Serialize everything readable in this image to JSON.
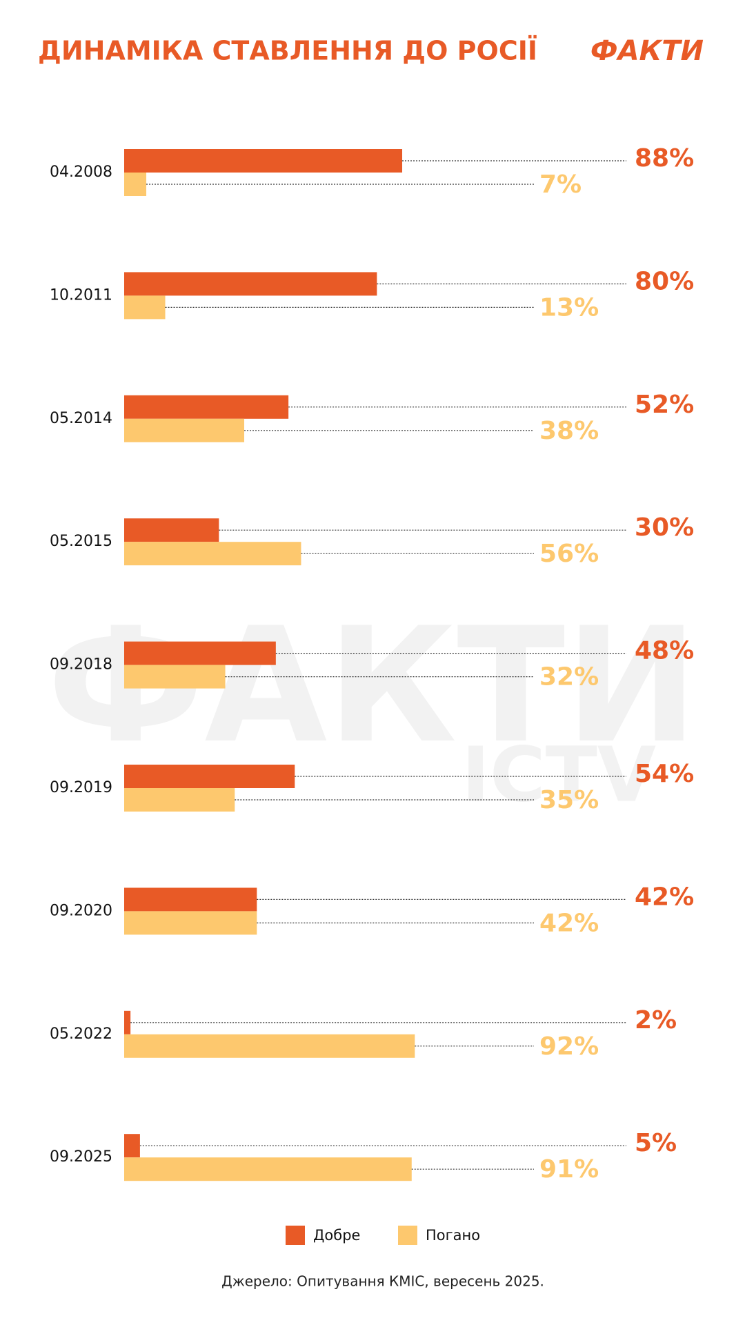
{
  "chart_data": {
    "type": "bar",
    "orientation": "horizontal",
    "title": "ДИНАМІКА СТАВЛЕННЯ ДО РОСІЇ",
    "brand": "ФАКТИ",
    "watermark": [
      "ФАКТИ",
      "ICTV"
    ],
    "source": "Джерело: Опитування КМІС, вересень 2025.",
    "categories": [
      "04.2008",
      "10.2011",
      "05.2014",
      "05.2015",
      "09.2018",
      "09.2019",
      "09.2020",
      "05.2022",
      "09.2025"
    ],
    "series": [
      {
        "name": "Добре",
        "color": "#e85a26",
        "values": [
          88,
          80,
          52,
          30,
          48,
          54,
          42,
          2,
          5
        ],
        "value_labels": [
          "88%",
          "80%",
          "52%",
          "30%",
          "48%",
          "54%",
          "42%",
          "2%",
          "5%"
        ]
      },
      {
        "name": "Погано",
        "color": "#fdc86e",
        "values": [
          7,
          13,
          38,
          56,
          32,
          35,
          42,
          92,
          91
        ],
        "value_labels": [
          "7%",
          "13%",
          "38%",
          "56%",
          "32%",
          "35%",
          "42%",
          "92%",
          "91%"
        ]
      }
    ],
    "xlim": [
      0,
      100
    ]
  }
}
